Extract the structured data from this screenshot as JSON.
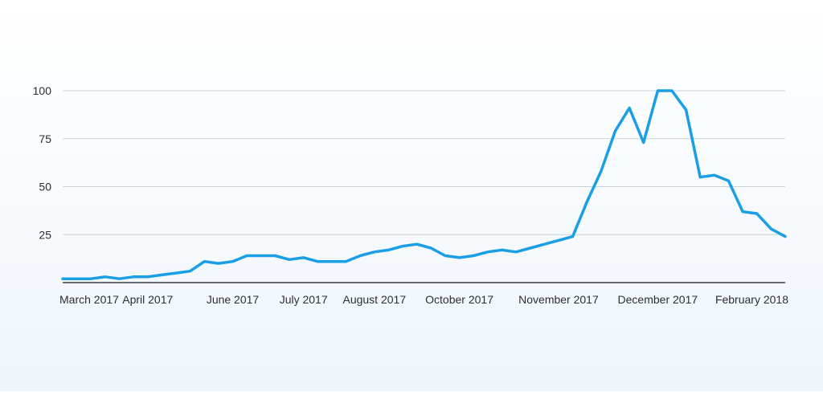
{
  "chart_data": {
    "type": "line",
    "title": "",
    "xlabel": "",
    "ylabel": "",
    "ylim": [
      0,
      100
    ],
    "yticks": [
      25,
      50,
      75,
      100
    ],
    "grid": true,
    "x_tick_labels": [
      "March 2017",
      "April 2017",
      "June 2017",
      "July 2017",
      "August 2017",
      "October 2017",
      "November 2017",
      "December 2017",
      "February 2018"
    ],
    "x_tick_index": [
      0,
      6,
      12,
      17,
      22,
      28,
      35,
      42,
      50
    ],
    "series": [
      {
        "color": "#1a9fe6",
        "values": [
          2,
          2,
          2,
          3,
          2,
          3,
          3,
          4,
          5,
          6,
          11,
          10,
          11,
          14,
          14,
          14,
          12,
          13,
          11,
          11,
          11,
          14,
          16,
          17,
          19,
          20,
          18,
          14,
          13,
          14,
          16,
          17,
          16,
          18,
          20,
          22,
          24,
          42,
          58,
          79,
          91,
          73,
          100,
          100,
          90,
          55,
          56,
          53,
          37,
          36,
          28,
          24
        ]
      }
    ]
  }
}
